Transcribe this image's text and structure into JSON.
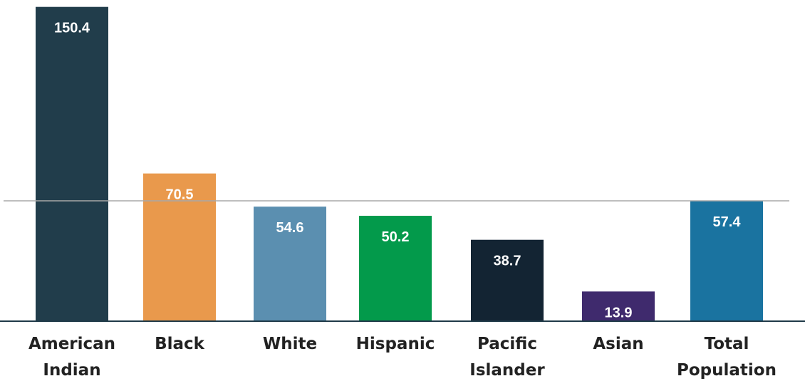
{
  "chart_data": {
    "type": "bar",
    "title": "",
    "xlabel": "",
    "ylabel": "",
    "ylim": [
      0,
      152
    ],
    "grid": false,
    "reference_line": {
      "value": 57.4
    },
    "categories": [
      [
        "American",
        "Indian"
      ],
      [
        "Black"
      ],
      [
        "White"
      ],
      [
        "Hispanic"
      ],
      [
        "Pacific",
        "Islander"
      ],
      [
        "Asian"
      ],
      [
        "Total",
        "Population"
      ]
    ],
    "values": [
      150.4,
      70.5,
      54.6,
      50.2,
      38.7,
      13.9,
      57.4
    ],
    "value_labels": [
      "150.4",
      "70.5",
      "54.6",
      "50.2",
      "38.7",
      "13.9",
      "57.4"
    ],
    "colors": [
      "#213d4b",
      "#e9994c",
      "#5b8fb0",
      "#039a4b",
      "#132433",
      "#3f2a6d",
      "#1a73a0"
    ],
    "reference_line_color": "#a8a8a8",
    "axis_color": "#1f3a48"
  }
}
